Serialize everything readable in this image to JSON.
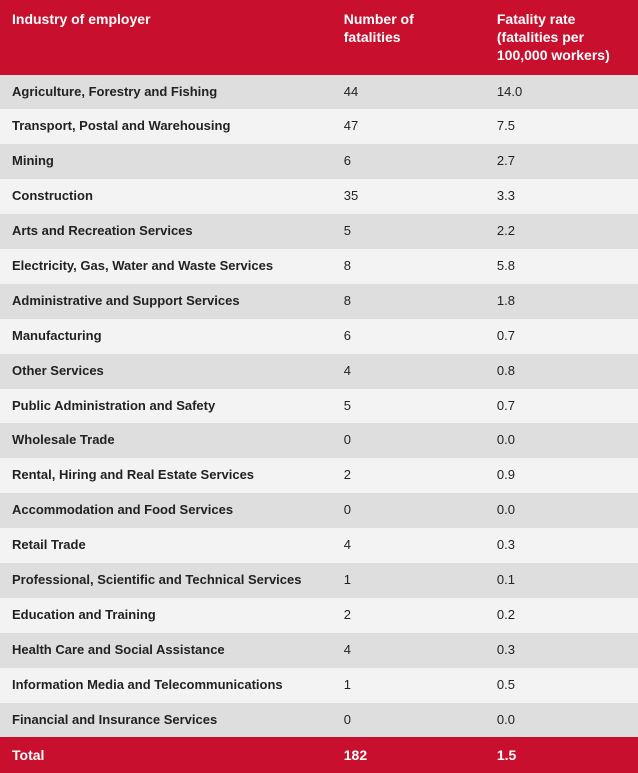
{
  "table": {
    "header_bg": "#c8102e",
    "header_fg": "#ffffff",
    "row_odd_bg": "#dedede",
    "row_even_bg": "#f3f3f3",
    "text_color": "#222222",
    "fontsize_header": 14,
    "fontsize_body": 13,
    "columns": [
      {
        "key": "industry",
        "label": "Industry of employer",
        "width_pct": 52,
        "align": "left",
        "bold_cells": true
      },
      {
        "key": "fatalities",
        "label": "Number of fatalities",
        "width_pct": 24,
        "align": "left"
      },
      {
        "key": "rate",
        "label": "Fatality rate (fatalities per 100,000 workers)",
        "width_pct": 24,
        "align": "left"
      }
    ],
    "rows": [
      {
        "industry": "Agriculture, Forestry and Fishing",
        "fatalities": "44",
        "rate": "14.0"
      },
      {
        "industry": "Transport, Postal and Warehousing",
        "fatalities": "47",
        "rate": "7.5"
      },
      {
        "industry": "Mining",
        "fatalities": "6",
        "rate": "2.7"
      },
      {
        "industry": "Construction",
        "fatalities": "35",
        "rate": "3.3"
      },
      {
        "industry": "Arts and Recreation Services",
        "fatalities": "5",
        "rate": "2.2"
      },
      {
        "industry": "Electricity, Gas, Water and Waste Services",
        "fatalities": "8",
        "rate": "5.8"
      },
      {
        "industry": "Administrative and Support Services",
        "fatalities": "8",
        "rate": "1.8"
      },
      {
        "industry": "Manufacturing",
        "fatalities": "6",
        "rate": "0.7"
      },
      {
        "industry": "Other Services",
        "fatalities": "4",
        "rate": "0.8"
      },
      {
        "industry": "Public Administration and Safety",
        "fatalities": "5",
        "rate": "0.7"
      },
      {
        "industry": "Wholesale Trade",
        "fatalities": "0",
        "rate": "0.0"
      },
      {
        "industry": "Rental, Hiring and Real Estate Services",
        "fatalities": "2",
        "rate": "0.9"
      },
      {
        "industry": "Accommodation and Food Services",
        "fatalities": "0",
        "rate": "0.0"
      },
      {
        "industry": "Retail Trade",
        "fatalities": "4",
        "rate": "0.3"
      },
      {
        "industry": "Professional, Scientific and Technical Services",
        "fatalities": "1",
        "rate": "0.1"
      },
      {
        "industry": "Education and Training",
        "fatalities": "2",
        "rate": "0.2"
      },
      {
        "industry": "Health Care and Social Assistance",
        "fatalities": "4",
        "rate": "0.3"
      },
      {
        "industry": "Information Media and Telecommunications",
        "fatalities": "1",
        "rate": "0.5"
      },
      {
        "industry": "Financial and Insurance Services",
        "fatalities": "0",
        "rate": "0.0"
      }
    ],
    "footer": {
      "label": "Total",
      "fatalities": "182",
      "rate": "1.5"
    }
  }
}
